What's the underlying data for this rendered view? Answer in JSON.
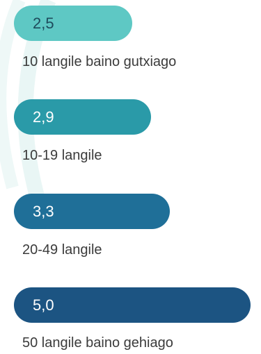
{
  "chart_data": {
    "type": "bar",
    "orientation": "horizontal",
    "categories": [
      "10 langile baino gutxiago",
      "10-19 langile",
      "20-49 langile",
      "50 langile baino gehiago"
    ],
    "values": [
      2.5,
      2.9,
      3.3,
      5.0
    ],
    "value_labels": [
      "2,5",
      "2,9",
      "3,3",
      "5,0"
    ],
    "colors": [
      "#5ec8c4",
      "#2a9aa8",
      "#1f6f98",
      "#1c5482"
    ],
    "xlim": [
      0,
      5.0
    ],
    "grid": false,
    "legend": "none"
  }
}
